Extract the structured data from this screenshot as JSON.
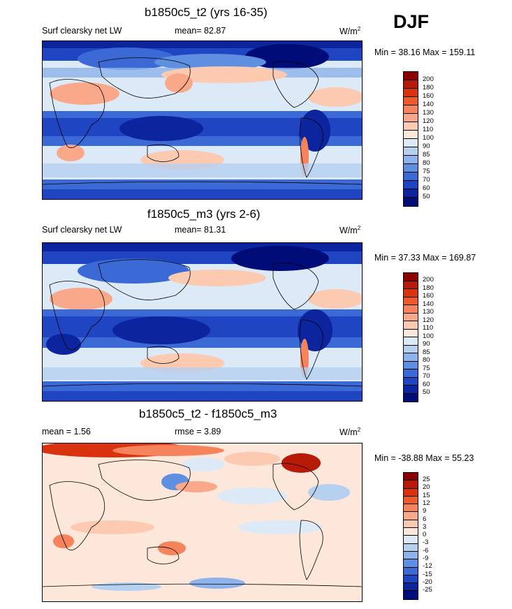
{
  "season": "DJF",
  "panels": [
    {
      "title": "b1850c5_t2 (yrs 16-35)",
      "left_label": "Surf clearsky net LW",
      "center_label": "mean=  82.87",
      "units": "W/m",
      "units_sup": "2",
      "minmax": "Min =  38.16 Max = 159.11",
      "colorbar": {
        "labels": [
          "200",
          "180",
          "160",
          "140",
          "130",
          "120",
          "110",
          "100",
          "90",
          "85",
          "80",
          "75",
          "70",
          "60",
          "50"
        ],
        "colors": [
          "#8b0000",
          "#b81a0a",
          "#d8320e",
          "#ee5a2a",
          "#f5835c",
          "#f9a98a",
          "#fcc9b1",
          "#fde6da",
          "#dce9f7",
          "#b6d0f0",
          "#8db3ea",
          "#5f8fe0",
          "#3b6ad6",
          "#1f45c2",
          "#0c259e",
          "#000c78"
        ]
      }
    },
    {
      "title": "f1850c5_m3 (yrs 2-6)",
      "left_label": "Surf clearsky net LW",
      "center_label": "mean=  81.31",
      "units": "W/m",
      "units_sup": "2",
      "minmax": "Min =  37.33 Max = 169.87",
      "colorbar": {
        "labels": [
          "200",
          "180",
          "160",
          "140",
          "130",
          "120",
          "110",
          "100",
          "90",
          "85",
          "80",
          "75",
          "70",
          "60",
          "50"
        ],
        "colors": [
          "#8b0000",
          "#b81a0a",
          "#d8320e",
          "#ee5a2a",
          "#f5835c",
          "#f9a98a",
          "#fcc9b1",
          "#fde6da",
          "#dce9f7",
          "#b6d0f0",
          "#8db3ea",
          "#5f8fe0",
          "#3b6ad6",
          "#1f45c2",
          "#0c259e",
          "#000c78"
        ]
      }
    },
    {
      "title": "b1850c5_t2 - f1850c5_m3",
      "left_label": "mean =   1.56",
      "center_label": "rmse =   3.89",
      "units": "W/m",
      "units_sup": "2",
      "minmax": "Min = -38.88 Max =  55.23",
      "colorbar": {
        "labels": [
          "25",
          "20",
          "15",
          "12",
          "9",
          "6",
          "3",
          "0",
          "-3",
          "-6",
          "-9",
          "-12",
          "-15",
          "-20",
          "-25"
        ],
        "colors": [
          "#8b0000",
          "#b81a0a",
          "#d8320e",
          "#ee5a2a",
          "#f5835c",
          "#f9a98a",
          "#fcc9b1",
          "#fde6da",
          "#dce9f7",
          "#b6d0f0",
          "#8db3ea",
          "#5f8fe0",
          "#3b6ad6",
          "#1f45c2",
          "#0c259e",
          "#000c78"
        ]
      }
    }
  ]
}
